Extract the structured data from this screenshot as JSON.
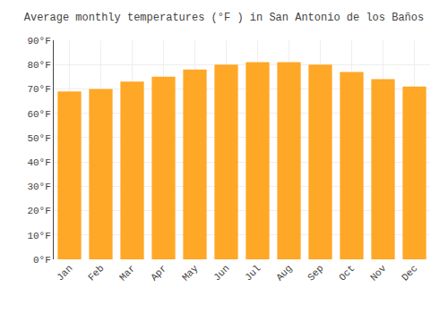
{
  "chart_data": {
    "type": "bar",
    "title": "Average monthly temperatures (°F ) in San Antonio de los Baños",
    "categories": [
      "Jan",
      "Feb",
      "Mar",
      "Apr",
      "May",
      "Jun",
      "Jul",
      "Aug",
      "Sep",
      "Oct",
      "Nov",
      "Dec"
    ],
    "values": [
      69,
      70,
      73,
      75,
      78,
      80,
      81,
      81,
      80,
      77,
      74,
      71
    ],
    "color": "#FFA726",
    "ylim": [
      0,
      90
    ],
    "yticks": [
      {
        "value": 0,
        "label": "0°F"
      },
      {
        "value": 10,
        "label": "10°F"
      },
      {
        "value": 20,
        "label": "20°F"
      },
      {
        "value": 30,
        "label": "30°F"
      },
      {
        "value": 40,
        "label": "40°F"
      },
      {
        "value": 50,
        "label": "50°F"
      },
      {
        "value": 60,
        "label": "60°F"
      },
      {
        "value": 70,
        "label": "70°F"
      },
      {
        "value": 80,
        "label": "80°F"
      },
      {
        "value": 90,
        "label": "90°F"
      }
    ],
    "grid": true
  }
}
